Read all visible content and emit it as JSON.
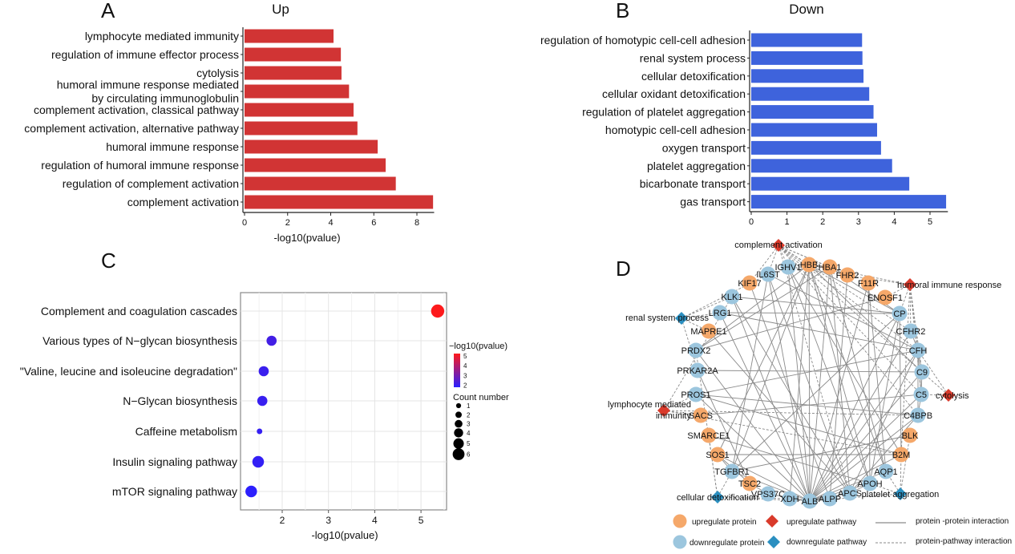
{
  "panels": {
    "A": "A",
    "B": "B",
    "C": "C",
    "D": "D"
  },
  "chart_data": [
    {
      "id": "A",
      "type": "bar",
      "orientation": "horizontal",
      "title": "Up",
      "xlabel": "-log10(pvalue)",
      "xlim": [
        0,
        8.8
      ],
      "xticks": [
        0,
        2,
        4,
        6,
        8
      ],
      "color": "#d13434",
      "categories": [
        "lymphocyte mediated immunity",
        "regulation of immune effector process",
        "cytolysis",
        "humoral immune response mediated\nby circulating immunoglobulin",
        "complement activation, classical pathway",
        "complement activation, alternative pathway",
        "humoral immune response",
        "regulation of humoral immune response",
        "regulation of complement activation",
        "complement activation"
      ],
      "values": [
        4.13,
        4.47,
        4.5,
        4.85,
        5.06,
        5.24,
        6.18,
        6.55,
        7.02,
        8.75
      ]
    },
    {
      "id": "B",
      "type": "bar",
      "orientation": "horizontal",
      "title": "Down",
      "xlabel": "",
      "xlim": [
        0,
        5.5
      ],
      "xticks": [
        0,
        1,
        2,
        3,
        4,
        5
      ],
      "color": "#3e63dc",
      "categories": [
        "regulation of homotypic cell-cell adhesion",
        "renal system process",
        "cellular detoxification",
        "cellular oxidant detoxification",
        "regulation of platelet aggregation",
        "homotypic cell-cell adhesion",
        "oxygen transport",
        "platelet aggregation",
        "bicarbonate transport",
        "gas transport"
      ],
      "values": [
        3.1,
        3.11,
        3.14,
        3.3,
        3.42,
        3.52,
        3.63,
        3.94,
        4.42,
        5.45
      ]
    },
    {
      "id": "C",
      "type": "scatter",
      "xlabel": "-log10(pvalue)",
      "xlim": [
        1.2,
        5.6
      ],
      "xticks": [
        2,
        3,
        4,
        5
      ],
      "grid": true,
      "categories": [
        "Complement and coagulation cascades",
        "Various types of N−glycan biosynthesis",
        "\"Valine, leucine and isoleucine degradation\"",
        "N−Glycan biosynthesis",
        "Caffeine metabolism",
        "Insulin signaling pathway",
        "mTOR signaling pathway"
      ],
      "x": [
        5.36,
        1.77,
        1.6,
        1.57,
        1.51,
        1.48,
        1.33
      ],
      "count": [
        6,
        4,
        4,
        4,
        1,
        5,
        5
      ],
      "color_scale": {
        "low": "#2a1fff",
        "high": "#ff1a1a",
        "title": "−log10(pvalue)",
        "ticks": [
          5,
          4,
          3,
          2
        ]
      },
      "size_legend": {
        "title": "Count number",
        "values": [
          1,
          2,
          3,
          4,
          5,
          6
        ]
      },
      "legend_position": "right"
    },
    {
      "id": "D",
      "type": "network",
      "colors": {
        "up_protein": "#f5a86a",
        "down_protein": "#9cc6de",
        "up_pathway": "#d93a2b",
        "down_pathway": "#2b8fc0",
        "edge": "#8a8a8a"
      },
      "nodes": [
        {
          "id": "complement activation",
          "kind": "up_pathway"
        },
        {
          "id": "humoral immune response",
          "kind": "up_pathway"
        },
        {
          "id": "cytolysis",
          "kind": "up_pathway"
        },
        {
          "id": "lymphocyte mediated\nimmunity",
          "kind": "up_pathway"
        },
        {
          "id": "renal system process",
          "kind": "down_pathway"
        },
        {
          "id": "cellular detoxification",
          "kind": "down_pathway"
        },
        {
          "id": "platelet aggregation",
          "kind": "down_pathway"
        },
        {
          "id": "IGHV1",
          "kind": "down_protein"
        },
        {
          "id": "HBB",
          "kind": "up_protein"
        },
        {
          "id": "HBA1",
          "kind": "up_protein"
        },
        {
          "id": "IL6ST",
          "kind": "down_protein"
        },
        {
          "id": "KIF17",
          "kind": "up_protein"
        },
        {
          "id": "FHR2",
          "kind": "up_protein"
        },
        {
          "id": "F11R",
          "kind": "up_protein"
        },
        {
          "id": "ENOSF1",
          "kind": "up_protein"
        },
        {
          "id": "KLK1",
          "kind": "down_protein"
        },
        {
          "id": "CP",
          "kind": "down_protein"
        },
        {
          "id": "LRG1",
          "kind": "down_protein"
        },
        {
          "id": "MAPRE1",
          "kind": "up_protein"
        },
        {
          "id": "CFHR2",
          "kind": "down_protein"
        },
        {
          "id": "PRDX2",
          "kind": "down_protein"
        },
        {
          "id": "CFH",
          "kind": "down_protein"
        },
        {
          "id": "PRKAR2A",
          "kind": "down_protein"
        },
        {
          "id": "C9",
          "kind": "down_protein"
        },
        {
          "id": "PROS1",
          "kind": "down_protein"
        },
        {
          "id": "C5",
          "kind": "down_protein"
        },
        {
          "id": "SACS",
          "kind": "up_protein"
        },
        {
          "id": "C4BPB",
          "kind": "down_protein"
        },
        {
          "id": "SMARCE1",
          "kind": "up_protein"
        },
        {
          "id": "BLK",
          "kind": "up_protein"
        },
        {
          "id": "SOS1",
          "kind": "up_protein"
        },
        {
          "id": "B2M",
          "kind": "up_protein"
        },
        {
          "id": "TGFBR1",
          "kind": "down_protein"
        },
        {
          "id": "AQP1",
          "kind": "down_protein"
        },
        {
          "id": "TSC2",
          "kind": "up_protein"
        },
        {
          "id": "APOH",
          "kind": "down_protein"
        },
        {
          "id": "VPS37C",
          "kind": "down_protein"
        },
        {
          "id": "XDH",
          "kind": "down_protein"
        },
        {
          "id": "ALB",
          "kind": "down_protein"
        },
        {
          "id": "ALPP",
          "kind": "down_protein"
        },
        {
          "id": "APCS",
          "kind": "down_protein"
        }
      ],
      "pathway_edges": [
        [
          "complement activation",
          "IGHV1"
        ],
        [
          "complement activation",
          "HBB"
        ],
        [
          "complement activation",
          "HBA1"
        ],
        [
          "complement activation",
          "IL6ST"
        ],
        [
          "complement activation",
          "KIF17"
        ],
        [
          "complement activation",
          "FHR2"
        ],
        [
          "complement activation",
          "C5"
        ],
        [
          "complement activation",
          "C9"
        ],
        [
          "complement activation",
          "CFH"
        ],
        [
          "complement activation",
          "CFHR2"
        ],
        [
          "complement activation",
          "C4BPB"
        ],
        [
          "complement activation",
          "APCS"
        ],
        [
          "humoral immune response",
          "IGHV1"
        ],
        [
          "humoral immune response",
          "HBB"
        ],
        [
          "humoral immune response",
          "CP"
        ],
        [
          "humoral immune response",
          "CFHR2"
        ],
        [
          "humoral immune response",
          "CFH"
        ],
        [
          "humoral immune response",
          "C9"
        ],
        [
          "humoral immune response",
          "C5"
        ],
        [
          "humoral immune response",
          "B2M"
        ],
        [
          "humoral immune response",
          "ENOSF1"
        ],
        [
          "cytolysis",
          "C5"
        ],
        [
          "cytolysis",
          "C9"
        ],
        [
          "cytolysis",
          "CFH"
        ],
        [
          "lymphocyte mediated\nimmunity",
          "PROS1"
        ],
        [
          "lymphocyte mediated\nimmunity",
          "SACS"
        ],
        [
          "lymphocyte mediated\nimmunity",
          "KLK1"
        ],
        [
          "lymphocyte mediated\nimmunity",
          "C4BPB"
        ],
        [
          "lymphocyte mediated\nimmunity",
          "B2M"
        ],
        [
          "renal system process",
          "KLK1"
        ],
        [
          "renal system process",
          "LRG1"
        ],
        [
          "renal system process",
          "MAPRE1"
        ],
        [
          "renal system process",
          "PRKAR2A"
        ],
        [
          "renal system process",
          "IL6ST"
        ],
        [
          "cellular detoxification",
          "TGFBR1"
        ],
        [
          "cellular detoxification",
          "PRDX2"
        ],
        [
          "cellular detoxification",
          "ALB"
        ],
        [
          "cellular detoxification",
          "XDH"
        ],
        [
          "cellular detoxification",
          "SMARCE1"
        ],
        [
          "platelet aggregation",
          "APOH"
        ],
        [
          "platelet aggregation",
          "AQP1"
        ],
        [
          "platelet aggregation",
          "B2M"
        ],
        [
          "platelet aggregation",
          "BLK"
        ],
        [
          "platelet aggregation",
          "ALB"
        ]
      ],
      "ppi_edges": [
        [
          "ALB",
          "HBB"
        ],
        [
          "ALB",
          "HBA1"
        ],
        [
          "ALB",
          "CP"
        ],
        [
          "ALB",
          "CFH"
        ],
        [
          "ALB",
          "C9"
        ],
        [
          "ALB",
          "C5"
        ],
        [
          "ALB",
          "APOH"
        ],
        [
          "ALB",
          "APCS"
        ],
        [
          "ALB",
          "ALPP"
        ],
        [
          "ALB",
          "XDH"
        ],
        [
          "ALB",
          "B2M"
        ],
        [
          "ALB",
          "KLK1"
        ],
        [
          "ALB",
          "LRG1"
        ],
        [
          "ALB",
          "PROS1"
        ],
        [
          "ALB",
          "TGFBR1"
        ],
        [
          "ALB",
          "IL6ST"
        ],
        [
          "ALB",
          "F11R"
        ],
        [
          "ALB",
          "C4BPB"
        ],
        [
          "ALB",
          "PRDX2"
        ],
        [
          "ALB",
          "SOS1"
        ],
        [
          "ALB",
          "IGHV1"
        ],
        [
          "ALB",
          "AQP1"
        ],
        [
          "ALB",
          "CFHR2"
        ],
        [
          "ALB",
          "VPS37C"
        ],
        [
          "HBB",
          "HBA1"
        ],
        [
          "HBB",
          "PRDX2"
        ],
        [
          "HBB",
          "CP"
        ],
        [
          "HBB",
          "APOH"
        ],
        [
          "HBB",
          "AQP1"
        ],
        [
          "HBB",
          "SOS1"
        ],
        [
          "HBB",
          "TGFBR1"
        ],
        [
          "HBB",
          "XDH"
        ],
        [
          "HBB",
          "C9"
        ],
        [
          "HBA1",
          "CP"
        ],
        [
          "HBA1",
          "PRDX2"
        ],
        [
          "HBA1",
          "APCS"
        ],
        [
          "HBA1",
          "AQP1"
        ],
        [
          "CP",
          "LRG1"
        ],
        [
          "CP",
          "APOH"
        ],
        [
          "CP",
          "B2M"
        ],
        [
          "CP",
          "KLK1"
        ],
        [
          "CP",
          "TGFBR1"
        ],
        [
          "CFH",
          "CFHR2"
        ],
        [
          "CFH",
          "C9"
        ],
        [
          "CFH",
          "C5"
        ],
        [
          "CFH",
          "C4BPB"
        ],
        [
          "CFH",
          "APCS"
        ],
        [
          "CFH",
          "PROS1"
        ],
        [
          "CFH",
          "LRG1"
        ],
        [
          "CFH",
          "IL6ST"
        ],
        [
          "C9",
          "C5"
        ],
        [
          "C9",
          "PRKAR2A"
        ],
        [
          "C5",
          "C4BPB"
        ],
        [
          "C5",
          "SACS"
        ],
        [
          "C4BPB",
          "PROS1"
        ],
        [
          "C4BPB",
          "APCS"
        ],
        [
          "SOS1",
          "B2M"
        ],
        [
          "SOS1",
          "TGFBR1"
        ],
        [
          "SMARCE1",
          "APOH"
        ],
        [
          "TSC2",
          "VPS37C"
        ],
        [
          "TSC2",
          "SOS1"
        ],
        [
          "TSC2",
          "PRKAR2A"
        ],
        [
          "IL6ST",
          "APCS"
        ],
        [
          "IL6ST",
          "TGFBR1"
        ],
        [
          "IGHV1",
          "B2M"
        ],
        [
          "IGHV1",
          "APOH"
        ],
        [
          "F11R",
          "APOH"
        ],
        [
          "F11R",
          "AQP1"
        ],
        [
          "ENOSF1",
          "PRDX2"
        ],
        [
          "KLK1",
          "APCS"
        ],
        [
          "MAPRE1",
          "APCS"
        ],
        [
          "PROS1",
          "B2M"
        ],
        [
          "FHR2",
          "ALPP"
        ],
        [
          "KIF17",
          "ALPP"
        ],
        [
          "BLK",
          "TGFBR1"
        ],
        [
          "APOH",
          "APCS"
        ]
      ],
      "legend": {
        "up_protein": "upregulate protein",
        "up_pathway": "upregulate pathway",
        "ppi": "protein -protein interaction",
        "down_protein": "downregulate protein",
        "down_pathway": "downregulate pathway",
        "ppw": "protein-pathway interaction"
      }
    }
  ]
}
